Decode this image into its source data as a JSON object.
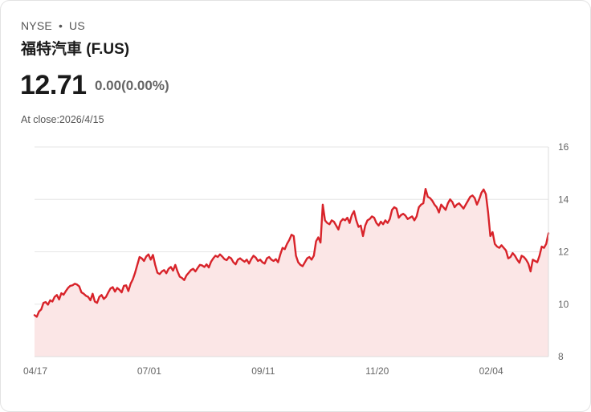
{
  "header": {
    "exchange": "NYSE",
    "separator": "•",
    "market": "US",
    "title": "福特汽車 (F.US)",
    "price": "12.71",
    "change": "0.00(0.00%)",
    "close_label": "At close:2026/4/15"
  },
  "colors": {
    "line": "#d8232a",
    "fill": "#fbe6e6",
    "grid": "#e6e6e6"
  },
  "chart_data": {
    "type": "area",
    "title": "福特汽車 (F.US)",
    "xlabel": "",
    "ylabel": "",
    "ylim": [
      8,
      16
    ],
    "yticks": [
      16,
      14,
      12,
      10,
      8
    ],
    "xtick_labels": [
      "04/17",
      "07/01",
      "09/11",
      "11/20",
      "02/04"
    ],
    "xtick_indices": [
      0,
      51,
      102,
      153,
      204
    ],
    "series": [
      {
        "name": "Close",
        "values": [
          9.58,
          9.52,
          9.72,
          9.8,
          10.05,
          10.08,
          9.98,
          10.15,
          10.1,
          10.28,
          10.35,
          10.18,
          10.42,
          10.36,
          10.5,
          10.62,
          10.7,
          10.72,
          10.78,
          10.75,
          10.68,
          10.45,
          10.4,
          10.32,
          10.28,
          10.15,
          10.4,
          10.1,
          10.05,
          10.28,
          10.35,
          10.2,
          10.28,
          10.45,
          10.6,
          10.65,
          10.48,
          10.62,
          10.55,
          10.45,
          10.7,
          10.72,
          10.5,
          10.78,
          10.95,
          11.2,
          11.5,
          11.8,
          11.75,
          11.65,
          11.82,
          11.9,
          11.7,
          11.88,
          11.5,
          11.2,
          11.15,
          11.25,
          11.3,
          11.18,
          11.35,
          11.42,
          11.28,
          11.5,
          11.25,
          11.05,
          11.0,
          10.92,
          11.1,
          11.2,
          11.3,
          11.35,
          11.25,
          11.38,
          11.5,
          11.48,
          11.42,
          11.52,
          11.4,
          11.62,
          11.75,
          11.85,
          11.8,
          11.9,
          11.82,
          11.72,
          11.68,
          11.8,
          11.75,
          11.6,
          11.52,
          11.7,
          11.75,
          11.68,
          11.62,
          11.7,
          11.55,
          11.72,
          11.85,
          11.78,
          11.65,
          11.7,
          11.6,
          11.55,
          11.75,
          11.8,
          11.7,
          11.65,
          11.72,
          11.6,
          11.9,
          12.15,
          12.1,
          12.3,
          12.45,
          12.65,
          12.6,
          11.85,
          11.6,
          11.5,
          11.45,
          11.6,
          11.75,
          11.8,
          11.7,
          11.85,
          12.4,
          12.55,
          12.35,
          13.8,
          13.2,
          13.1,
          13.05,
          13.2,
          13.15,
          13.0,
          12.85,
          13.15,
          13.25,
          13.2,
          13.3,
          13.1,
          13.4,
          13.55,
          13.2,
          12.95,
          13.0,
          12.6,
          13.0,
          13.2,
          13.25,
          13.35,
          13.3,
          13.1,
          13.0,
          13.15,
          13.05,
          13.2,
          13.1,
          13.25,
          13.6,
          13.7,
          13.65,
          13.3,
          13.4,
          13.45,
          13.38,
          13.25,
          13.3,
          13.35,
          13.2,
          13.35,
          13.7,
          13.8,
          13.85,
          14.4,
          14.1,
          14.05,
          13.95,
          13.8,
          13.7,
          13.5,
          13.8,
          13.7,
          13.6,
          13.85,
          14.0,
          13.9,
          13.7,
          13.8,
          13.85,
          13.75,
          13.65,
          13.8,
          13.95,
          14.1,
          14.15,
          14.05,
          13.8,
          14.0,
          14.25,
          14.38,
          14.2,
          13.5,
          12.6,
          12.75,
          12.3,
          12.2,
          12.15,
          12.25,
          12.15,
          12.05,
          11.75,
          11.8,
          11.95,
          11.85,
          11.7,
          11.58,
          11.85,
          11.8,
          11.7,
          11.55,
          11.25,
          11.7,
          11.65,
          11.6,
          11.85,
          12.2,
          12.15,
          12.3,
          12.71
        ]
      }
    ]
  }
}
